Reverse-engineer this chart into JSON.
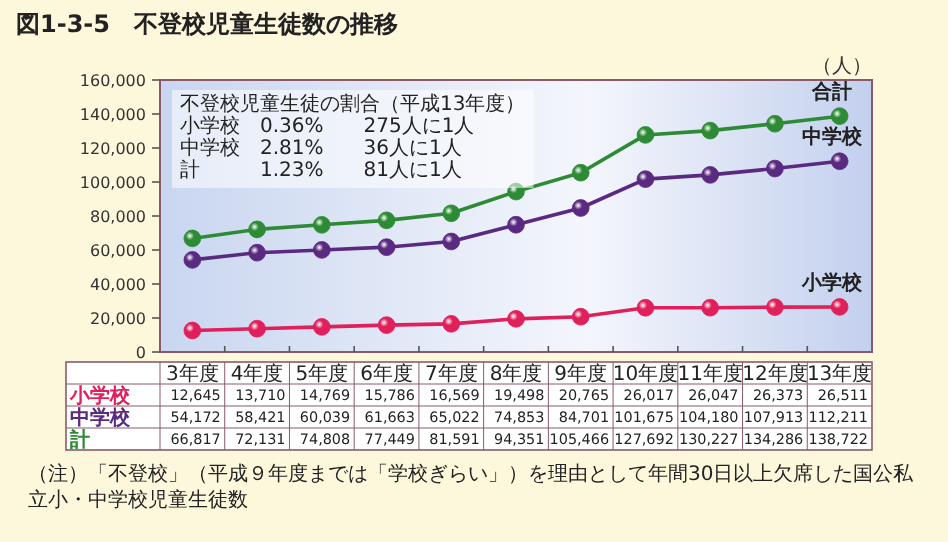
{
  "chart_data": {
    "type": "line",
    "title": "図1-3-5　不登校児童生徒数の推移",
    "ylabel": "（人）",
    "categories": [
      "3年度",
      "4年度",
      "5年度",
      "6年度",
      "7年度",
      "8年度",
      "9年度",
      "10年度",
      "11年度",
      "12年度",
      "13年度"
    ],
    "series": [
      {
        "name": "小学校",
        "color": "#e0205a",
        "values": [
          12645,
          13710,
          14769,
          15786,
          16569,
          19498,
          20765,
          26017,
          26047,
          26373,
          26511
        ],
        "value_labels": [
          "12,645",
          "13,710",
          "14,769",
          "15,786",
          "16,569",
          "19,498",
          "20,765",
          "26,017",
          "26,047",
          "26,373",
          "26,511"
        ]
      },
      {
        "name": "中学校",
        "color": "#5a2a80",
        "values": [
          54172,
          58421,
          60039,
          61663,
          65022,
          74853,
          84701,
          101675,
          104180,
          107913,
          112211
        ],
        "value_labels": [
          "54,172",
          "58,421",
          "60,039",
          "61,663",
          "65,022",
          "74,853",
          "84,701",
          "101,675",
          "104,180",
          "107,913",
          "112,211"
        ]
      },
      {
        "name": "計",
        "color": "#2e8b35",
        "values": [
          66817,
          72131,
          74808,
          77449,
          81591,
          94351,
          105466,
          127692,
          130227,
          134286,
          138722
        ],
        "value_labels": [
          "66,817",
          "72,131",
          "74,808",
          "77,449",
          "81,591",
          "94,351",
          "105,466",
          "127,692",
          "130,227",
          "134,286",
          "138,722"
        ]
      }
    ],
    "ylim": [
      0,
      160000
    ],
    "yticks": [
      {
        "value": 0,
        "label": "0"
      },
      {
        "value": 20000,
        "label": "20,000"
      },
      {
        "value": 40000,
        "label": "40,000"
      },
      {
        "value": 60000,
        "label": "60,000"
      },
      {
        "value": 80000,
        "label": "80,000"
      },
      {
        "value": 100000,
        "label": "100,000"
      },
      {
        "value": 120000,
        "label": "120,000"
      },
      {
        "value": 140000,
        "label": "140,000"
      },
      {
        "value": 160000,
        "label": "160,000"
      }
    ],
    "marker": "circle",
    "line_style": "solid",
    "annotations": [
      "小学校",
      "中学校",
      "合計",
      "不登校児童生徒の割合（平成13年度）",
      "小学校　0.36%　　275人に1人",
      "中学校　2.81%　　36人に1人",
      "計　　　1.23%　　81人に1人",
      "（注）「不登校」（平成９年度までは「学校ぎらい」）を理由として年間30日以上欠席した国公私立小・中学校児童生徒数"
    ]
  }
}
